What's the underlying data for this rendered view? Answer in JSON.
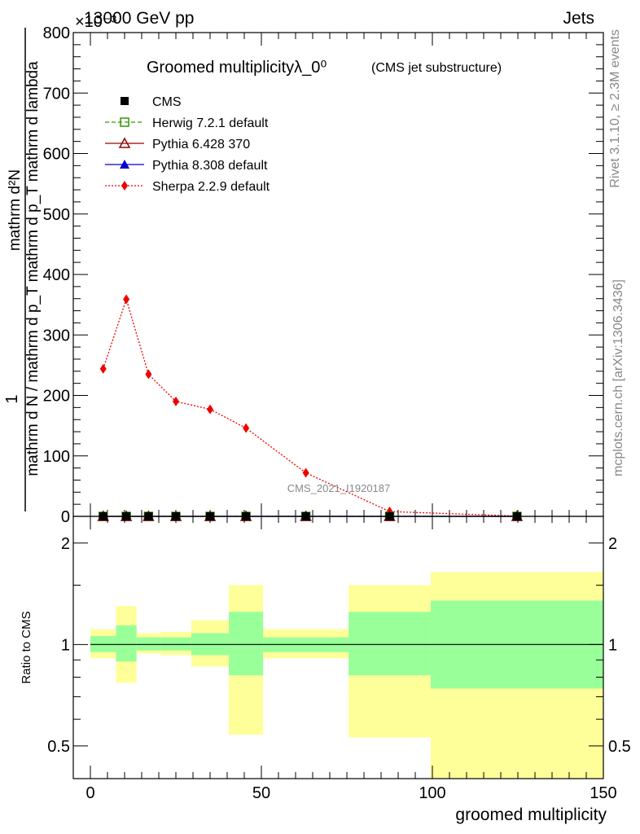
{
  "header": {
    "left": "13000 GeV pp",
    "right": "Jets",
    "exponent": "×10⁻³",
    "watermark": "CMS_2021_I1920187"
  },
  "side_labels": {
    "rivet": "Rivet 3.1.10, ≥ 2.3M events",
    "mcplots": "mcplots.cern.ch [arXiv:1306.3436]"
  },
  "chart_data": [
    {
      "type": "line",
      "title": "Groomed multiplicityλ_0⁰",
      "subtitle": "(CMS jet substructure)",
      "ylabel_num": "mathrm d²N",
      "ylabel_den": "mathrm d N / mathrm d p_T mathrm d p_T mathrm d lambda",
      "ylabel_prefix": "1",
      "xlim": [
        -5,
        150
      ],
      "ylim": [
        0,
        800
      ],
      "y_scale_note": "×10⁻³",
      "x_ticks": [
        0,
        50,
        100,
        150
      ],
      "y_ticks": [
        0,
        100,
        200,
        300,
        400,
        500,
        600,
        700,
        800
      ],
      "bin_edges": [
        0,
        7.5,
        13.5,
        20.5,
        29.5,
        40.5,
        50.5,
        75.5,
        99.5,
        150
      ],
      "series": [
        {
          "name": "CMS",
          "color": "#000000",
          "marker": "square",
          "x": [
            3.75,
            10.5,
            17,
            25,
            35,
            45.5,
            63,
            87.5,
            124.75
          ],
          "y": [
            0,
            0,
            0,
            0,
            0,
            0,
            0,
            0,
            0
          ]
        },
        {
          "name": "Herwig 7.2.1 default",
          "color": "#339900",
          "marker": "open-square",
          "line": "dashed",
          "x": [
            3.75,
            10.5,
            17,
            25,
            35,
            45.5,
            63,
            87.5,
            124.75
          ],
          "y": [
            0,
            0,
            0,
            0,
            0,
            0,
            0,
            0,
            0
          ]
        },
        {
          "name": "Pythia 6.428 370",
          "color": "#990000",
          "marker": "open-triangle",
          "line": "solid",
          "x": [
            3.75,
            10.5,
            17,
            25,
            35,
            45.5,
            63,
            87.5,
            124.75
          ],
          "y": [
            0,
            0,
            0,
            0,
            0,
            0,
            0,
            0,
            0
          ]
        },
        {
          "name": "Pythia 8.308 default",
          "color": "#0000cc",
          "marker": "filled-triangle",
          "line": "solid",
          "x": [
            3.75,
            10.5,
            17,
            25,
            35,
            45.5,
            63,
            87.5,
            124.75
          ],
          "y": [
            0,
            0,
            0,
            0,
            0,
            0,
            0,
            0,
            0
          ]
        },
        {
          "name": "Sherpa 2.2.9 default",
          "color": "#ee0000",
          "marker": "diamond",
          "line": "dotted",
          "x": [
            3.75,
            10.5,
            17,
            25,
            35,
            45.5,
            63,
            87.5,
            124.75
          ],
          "y": [
            244,
            359,
            235,
            190,
            177,
            146,
            72,
            8,
            0.5
          ]
        }
      ]
    },
    {
      "type": "area",
      "ylabel": "Ratio to CMS",
      "xlabel": "groomed multiplicity",
      "xlim": [
        -5,
        150
      ],
      "ylim": [
        0.4,
        2.4
      ],
      "y_scale": "log",
      "y_ticks": [
        0.5,
        1,
        2
      ],
      "x_ticks": [
        0,
        50,
        100,
        150
      ],
      "bands": [
        {
          "x0": 0,
          "x1": 7.5,
          "in_lo": 0.95,
          "in_hi": 1.06,
          "out_lo": 0.91,
          "out_hi": 1.11
        },
        {
          "x0": 7.5,
          "x1": 13.5,
          "in_lo": 0.89,
          "in_hi": 1.14,
          "out_lo": 0.77,
          "out_hi": 1.3
        },
        {
          "x0": 13.5,
          "x1": 20.5,
          "in_lo": 0.96,
          "in_hi": 1.05,
          "out_lo": 0.94,
          "out_hi": 1.08
        },
        {
          "x0": 20.5,
          "x1": 29.5,
          "in_lo": 0.96,
          "in_hi": 1.05,
          "out_lo": 0.93,
          "out_hi": 1.09
        },
        {
          "x0": 29.5,
          "x1": 40.5,
          "in_lo": 0.93,
          "in_hi": 1.08,
          "out_lo": 0.86,
          "out_hi": 1.18
        },
        {
          "x0": 40.5,
          "x1": 50.5,
          "in_lo": 0.81,
          "in_hi": 1.25,
          "out_lo": 0.54,
          "out_hi": 1.5
        },
        {
          "x0": 50.5,
          "x1": 75.5,
          "in_lo": 0.95,
          "in_hi": 1.05,
          "out_lo": 0.91,
          "out_hi": 1.11
        },
        {
          "x0": 75.5,
          "x1": 99.5,
          "in_lo": 0.81,
          "in_hi": 1.25,
          "out_lo": 0.53,
          "out_hi": 1.5
        },
        {
          "x0": 99.5,
          "x1": 150,
          "in_lo": 0.74,
          "in_hi": 1.35,
          "out_lo": 0.4,
          "out_hi": 1.64
        }
      ],
      "inner_color": "#99ff99",
      "outer_color": "#ffff99",
      "reference": 1
    }
  ]
}
